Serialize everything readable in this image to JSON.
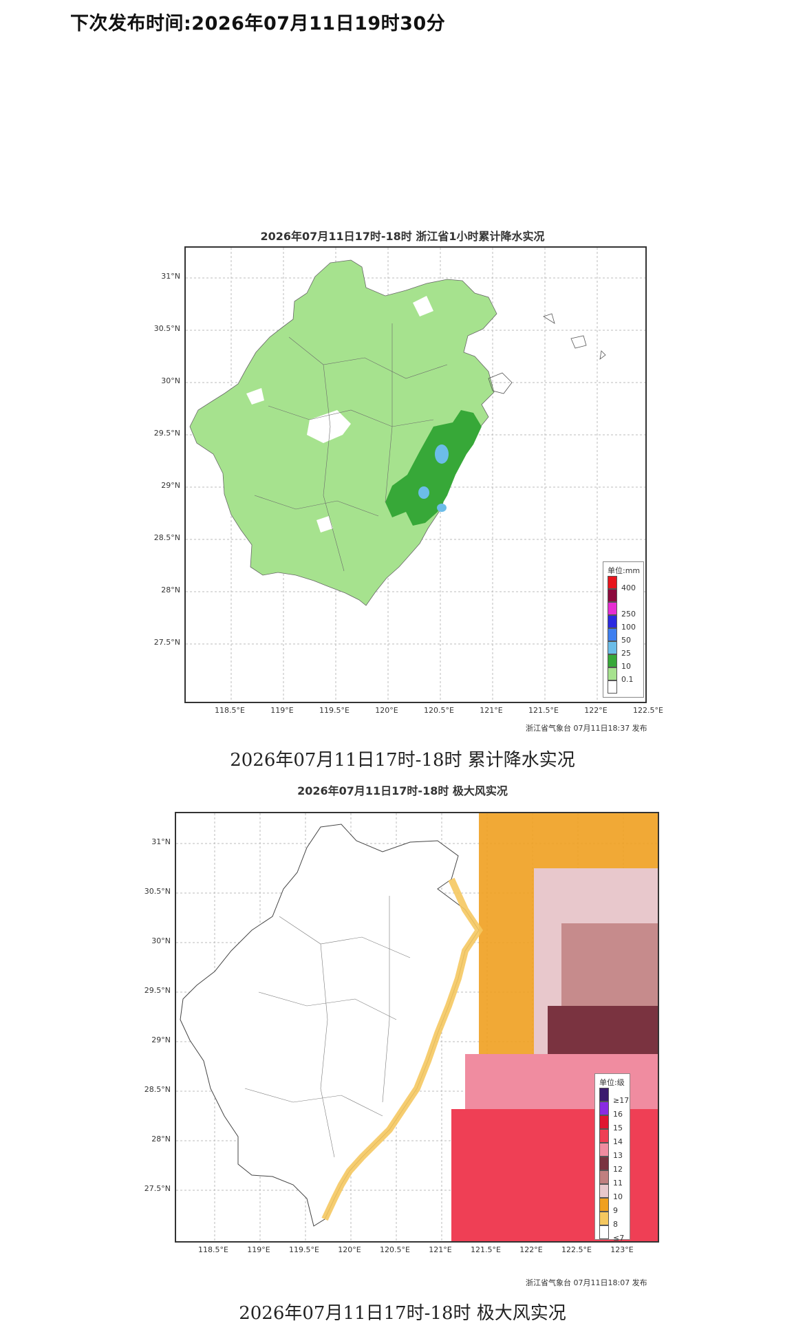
{
  "header": {
    "next_release": "下次发布时间:2026年07月11日19时30分"
  },
  "rain_map": {
    "title": "2026年07月11日17时-18时 浙江省1小时累计降水实况",
    "lat_labels": [
      "31°N",
      "30.5°N",
      "30°N",
      "29.5°N",
      "29°N",
      "28.5°N",
      "28°N",
      "27.5°N"
    ],
    "lon_labels": [
      "118.5°E",
      "119°E",
      "119.5°E",
      "120°E",
      "120.5°E",
      "121°E",
      "121.5°E",
      "122°E",
      "122.5°E"
    ],
    "credit": "浙江省气象台 07月11日18:37 发布",
    "caption": "2026年07月11日17时-18时 累计降水实况",
    "legend": {
      "unit": "单位:mm",
      "items": [
        {
          "label": "400",
          "color": "#e8141c"
        },
        {
          "label": "",
          "color": "#8b0a3c"
        },
        {
          "label": "250",
          "color": "#e62dd2"
        },
        {
          "label": "100",
          "color": "#2a2ae0"
        },
        {
          "label": "50",
          "color": "#3e7ff0"
        },
        {
          "label": "25",
          "color": "#6cbde8"
        },
        {
          "label": "10",
          "color": "#37a838"
        },
        {
          "label": "0.1",
          "color": "#a6e28e"
        },
        {
          "label": "",
          "color": "#ffffff"
        }
      ]
    }
  },
  "wind_map": {
    "title": "2026年07月11日17时-18时 极大风实况",
    "lat_labels": [
      "31°N",
      "30.5°N",
      "30°N",
      "29.5°N",
      "29°N",
      "28.5°N",
      "28°N",
      "27.5°N"
    ],
    "lon_labels": [
      "118.5°E",
      "119°E",
      "119.5°E",
      "120°E",
      "120.5°E",
      "121°E",
      "121.5°E",
      "122°E",
      "122.5°E",
      "123°E"
    ],
    "credit": "浙江省气象台 07月11日18:07 发布",
    "caption": "2026年07月11日17时-18时  极大风实况",
    "legend": {
      "unit": "单位:级",
      "items": [
        {
          "label": "≥17",
          "color": "#3b1a6e"
        },
        {
          "label": "16",
          "color": "#8a2be2"
        },
        {
          "label": "15",
          "color": "#e01530"
        },
        {
          "label": "14",
          "color": "#ef3f55"
        },
        {
          "label": "13",
          "color": "#f08ca0"
        },
        {
          "label": "12",
          "color": "#7a3340"
        },
        {
          "label": "11",
          "color": "#c08080"
        },
        {
          "label": "10",
          "color": "#e8c8cc"
        },
        {
          "label": "9",
          "color": "#f0a020"
        },
        {
          "label": "8",
          "color": "#f5c860"
        },
        {
          "label": "≤7",
          "color": "#ffffff"
        }
      ]
    }
  }
}
